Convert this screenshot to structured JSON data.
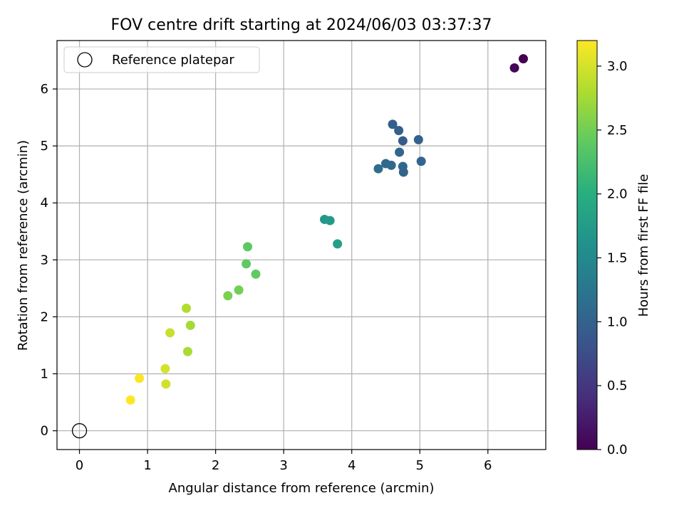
{
  "chart_data": {
    "type": "scatter",
    "title": "FOV centre drift starting at 2024/06/03 03:37:37",
    "xlabel": "Angular distance from reference (arcmin)",
    "ylabel": "Rotation from reference (arcmin)",
    "xlim": [
      -0.33,
      6.85
    ],
    "ylim": [
      -0.33,
      6.85
    ],
    "xticks": [
      0,
      1,
      2,
      3,
      4,
      5,
      6
    ],
    "yticks": [
      0,
      1,
      2,
      3,
      4,
      5,
      6
    ],
    "grid": true,
    "legend": {
      "placement": "top-left",
      "entries": [
        "Reference platepar"
      ]
    },
    "reference_point": {
      "label": "Reference platepar",
      "x": 0,
      "y": 0
    },
    "colorbar": {
      "label": "Hours from first FF file",
      "colormap": "viridis",
      "min": 0.0,
      "max": 3.2,
      "ticks": [
        "0.0",
        "0.5",
        "1.0",
        "1.5",
        "2.0",
        "2.5",
        "3.0"
      ]
    },
    "points": [
      {
        "x": 6.52,
        "y": 6.53,
        "hours": 0.0
      },
      {
        "x": 6.39,
        "y": 6.37,
        "hours": 0.05
      },
      {
        "x": 4.6,
        "y": 5.38,
        "hours": 0.95
      },
      {
        "x": 4.69,
        "y": 5.27,
        "hours": 0.98
      },
      {
        "x": 4.75,
        "y": 5.09,
        "hours": 0.92
      },
      {
        "x": 4.98,
        "y": 5.11,
        "hours": 1.0
      },
      {
        "x": 4.7,
        "y": 4.89,
        "hours": 1.05
      },
      {
        "x": 5.02,
        "y": 4.73,
        "hours": 1.02
      },
      {
        "x": 4.5,
        "y": 4.69,
        "hours": 1.08
      },
      {
        "x": 4.58,
        "y": 4.66,
        "hours": 1.1
      },
      {
        "x": 4.75,
        "y": 4.64,
        "hours": 1.06
      },
      {
        "x": 4.39,
        "y": 4.6,
        "hours": 1.12
      },
      {
        "x": 4.76,
        "y": 4.54,
        "hours": 1.03
      },
      {
        "x": 3.6,
        "y": 3.71,
        "hours": 1.7
      },
      {
        "x": 3.68,
        "y": 3.69,
        "hours": 1.72
      },
      {
        "x": 3.79,
        "y": 3.28,
        "hours": 1.8
      },
      {
        "x": 2.47,
        "y": 3.23,
        "hours": 2.38
      },
      {
        "x": 2.45,
        "y": 2.93,
        "hours": 2.4
      },
      {
        "x": 2.59,
        "y": 2.75,
        "hours": 2.42
      },
      {
        "x": 2.34,
        "y": 2.47,
        "hours": 2.5
      },
      {
        "x": 2.18,
        "y": 2.37,
        "hours": 2.55
      },
      {
        "x": 1.57,
        "y": 2.15,
        "hours": 2.82
      },
      {
        "x": 1.63,
        "y": 1.85,
        "hours": 2.75
      },
      {
        "x": 1.33,
        "y": 1.72,
        "hours": 2.93
      },
      {
        "x": 1.59,
        "y": 1.39,
        "hours": 2.78
      },
      {
        "x": 1.26,
        "y": 1.09,
        "hours": 3.0
      },
      {
        "x": 0.88,
        "y": 0.92,
        "hours": 3.18
      },
      {
        "x": 1.27,
        "y": 0.82,
        "hours": 2.98
      },
      {
        "x": 0.75,
        "y": 0.54,
        "hours": 3.2
      }
    ]
  }
}
